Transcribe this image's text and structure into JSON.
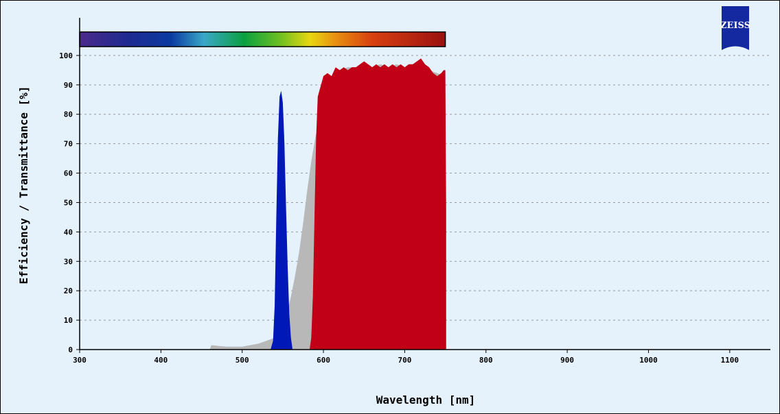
{
  "chart_data": {
    "type": "area",
    "xlabel": "Wavelength [nm]",
    "ylabel": "Efficiency / Transmittance [%]",
    "xlim": [
      300,
      1150
    ],
    "ylim": [
      0,
      110
    ],
    "x_ticks": [
      300,
      400,
      500,
      600,
      700,
      800,
      900,
      1000,
      1100
    ],
    "y_ticks": [
      0,
      10,
      20,
      30,
      40,
      50,
      60,
      70,
      80,
      90,
      100
    ],
    "grid": "horizontal dotted",
    "spectrum_bar": {
      "x_range": [
        300,
        750
      ],
      "y_range": [
        103,
        108
      ]
    },
    "series": [
      {
        "color": "#b8b8b8",
        "x": [
          460,
          462,
          480,
          500,
          520,
          530,
          540,
          550,
          555,
          560,
          565,
          570,
          575,
          580,
          585,
          590,
          595,
          600,
          605,
          610,
          615,
          620,
          630,
          640,
          650,
          660,
          670,
          680,
          690,
          700,
          710,
          720,
          730,
          740,
          750
        ],
        "values": [
          0,
          1.5,
          1,
          1,
          2,
          3,
          4,
          7,
          12,
          18,
          25,
          33,
          43,
          54,
          64,
          72,
          79,
          85,
          89,
          92,
          94,
          95,
          96,
          96,
          97,
          96,
          97,
          96,
          97,
          96,
          97,
          97,
          95,
          94,
          93
        ]
      },
      {
        "color": "#c10017",
        "x": [
          583,
          585,
          587,
          589,
          591,
          593,
          595,
          600,
          605,
          610,
          615,
          620,
          625,
          630,
          635,
          640,
          645,
          650,
          655,
          660,
          665,
          670,
          675,
          680,
          685,
          690,
          695,
          700,
          705,
          710,
          715,
          720,
          725,
          730,
          735,
          740,
          745,
          748,
          750,
          751
        ],
        "values": [
          0,
          4,
          18,
          45,
          72,
          86,
          88,
          93,
          94,
          93,
          96,
          95,
          96,
          95,
          96,
          96,
          97,
          98,
          97,
          96,
          97,
          96,
          97,
          96,
          97,
          96,
          97,
          96,
          97,
          97,
          98,
          99,
          97,
          96,
          94,
          93,
          94,
          95,
          95,
          48
        ]
      },
      {
        "color": "#0018b8",
        "x": [
          535,
          538,
          540,
          542,
          544,
          546,
          548,
          550,
          552,
          554,
          556,
          558,
          560,
          562
        ],
        "values": [
          0,
          3,
          15,
          45,
          72,
          86,
          88,
          84,
          70,
          48,
          28,
          12,
          4,
          0
        ]
      }
    ]
  },
  "logo": {
    "name": "zeiss-logo",
    "text": "ZEISS",
    "color": "#1428a0"
  }
}
